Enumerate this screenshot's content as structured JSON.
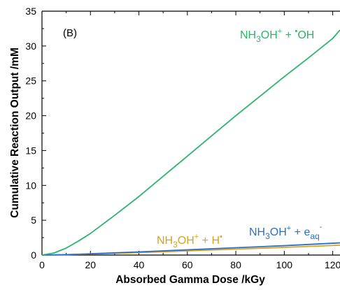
{
  "chart_data": {
    "type": "line",
    "panel_label": "(B)",
    "xlabel": "Absorbed Gamma Dose /kGy",
    "ylabel": "Cumulative Reaction Output /mM",
    "xlim": [
      0,
      123
    ],
    "ylim": [
      0,
      35
    ],
    "x_ticks": [
      0,
      20,
      40,
      60,
      80,
      100,
      120
    ],
    "y_ticks": [
      0,
      5,
      10,
      15,
      20,
      25,
      30,
      35
    ],
    "grid": false,
    "colors": {
      "oh": "#2db36b",
      "eaq": "#2a6fc9",
      "h": "#d9a21e"
    },
    "series": [
      {
        "key": "oh",
        "label": {
          "base": "NH",
          "sub1": "3",
          "mid": "OH",
          "sup1": "+",
          "plus": " + ",
          "sup2": "•",
          "tail": "OH"
        },
        "x": [
          0,
          5,
          10,
          15,
          20,
          30,
          40,
          50,
          60,
          70,
          80,
          90,
          100,
          110,
          120,
          123
        ],
        "values": [
          0,
          0.3,
          1.0,
          2.0,
          3.1,
          5.7,
          8.4,
          11.3,
          14.2,
          17.1,
          20.0,
          22.8,
          25.6,
          28.3,
          31.1,
          32.3
        ]
      },
      {
        "key": "eaq",
        "label": {
          "base": "NH",
          "sub1": "3",
          "mid": "OH",
          "sup1": "+",
          "plus": " + e",
          "sub2": "aq",
          "sup2": "-"
        },
        "x": [
          0,
          10,
          20,
          40,
          60,
          80,
          100,
          123
        ],
        "values": [
          0,
          0.06,
          0.18,
          0.45,
          0.75,
          1.05,
          1.35,
          1.75
        ]
      },
      {
        "key": "h",
        "label": {
          "base": "NH",
          "sub1": "3",
          "mid": "OH",
          "sup1": "+",
          "plus": " + H",
          "sup2": "•"
        },
        "x": [
          0,
          10,
          20,
          40,
          60,
          80,
          100,
          123
        ],
        "values": [
          0,
          0.05,
          0.14,
          0.35,
          0.6,
          0.85,
          1.1,
          1.42
        ]
      }
    ]
  }
}
